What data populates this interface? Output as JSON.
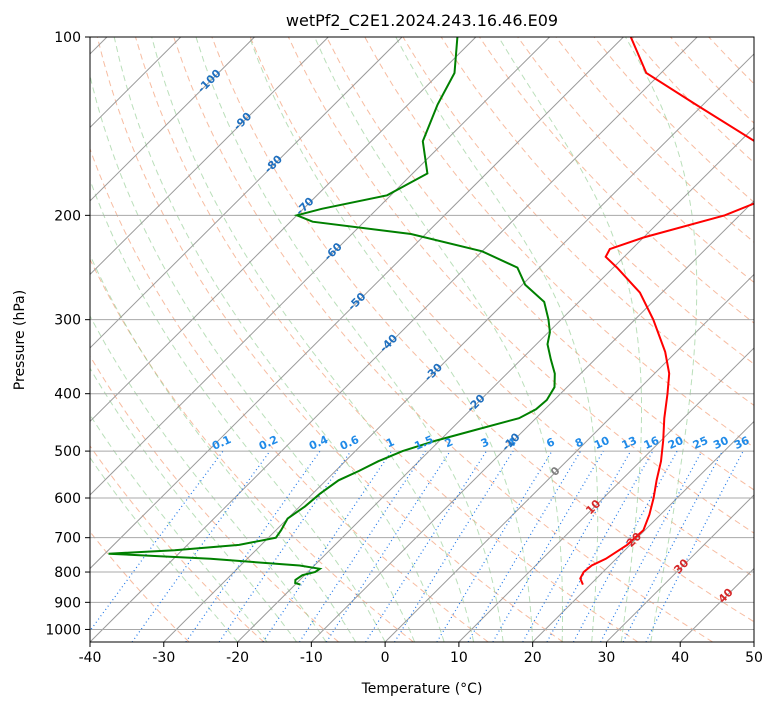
{
  "chart_data": {
    "type": "skew-t",
    "title": "wetPf2_C2E1.2024.243.16.46.E09",
    "xlabel": "Temperature (°C)",
    "ylabel": "Pressure (hPa)",
    "xlim": [
      -40,
      50
    ],
    "ylim": [
      1050,
      100
    ],
    "x_ticks": [
      "-40",
      "-30",
      "-20",
      "-10",
      "0",
      "10",
      "20",
      "30",
      "40",
      "50"
    ],
    "y_ticks": [
      "100",
      "200",
      "300",
      "400",
      "500",
      "600",
      "700",
      "800",
      "900",
      "1000"
    ],
    "temperature_profile": {
      "name": "Temperature",
      "color": "#ff0000",
      "points": [
        [
          840,
          19.0
        ],
        [
          820,
          17.8
        ],
        [
          800,
          17.4
        ],
        [
          780,
          17.6
        ],
        [
          760,
          18.6
        ],
        [
          720,
          19.6
        ],
        [
          680,
          19.8
        ],
        [
          640,
          18.5
        ],
        [
          600,
          16.8
        ],
        [
          560,
          14.8
        ],
        [
          520,
          12.8
        ],
        [
          480,
          10.3
        ],
        [
          440,
          7.4
        ],
        [
          400,
          4.5
        ],
        [
          370,
          2.0
        ],
        [
          340,
          -1.5
        ],
        [
          300,
          -7.5
        ],
        [
          270,
          -13
        ],
        [
          245,
          -19.5
        ],
        [
          235,
          -22.5
        ],
        [
          228,
          -23
        ],
        [
          218,
          -20
        ],
        [
          200,
          -12
        ],
        [
          185,
          -8
        ],
        [
          170,
          -10.5
        ],
        [
          150,
          -18
        ],
        [
          130,
          -31
        ],
        [
          115,
          -42
        ],
        [
          100,
          -49
        ]
      ]
    },
    "dewpoint_profile": {
      "name": "Dewpoint",
      "color": "#008000",
      "points": [
        [
          840,
          -19.3
        ],
        [
          835,
          -20.2
        ],
        [
          825,
          -20.6
        ],
        [
          810,
          -20.3
        ],
        [
          800,
          -19
        ],
        [
          790,
          -18.8
        ],
        [
          780,
          -22
        ],
        [
          760,
          -35
        ],
        [
          745,
          -49.5
        ],
        [
          735,
          -41
        ],
        [
          720,
          -33
        ],
        [
          700,
          -29
        ],
        [
          680,
          -29.3
        ],
        [
          650,
          -30
        ],
        [
          620,
          -29.3
        ],
        [
          590,
          -29
        ],
        [
          560,
          -28.3
        ],
        [
          540,
          -26.8
        ],
        [
          520,
          -25.5
        ],
        [
          500,
          -23.6
        ],
        [
          480,
          -20.5
        ],
        [
          460,
          -16.5
        ],
        [
          440,
          -12.3
        ],
        [
          425,
          -11.2
        ],
        [
          410,
          -11
        ],
        [
          390,
          -11.7
        ],
        [
          370,
          -13.5
        ],
        [
          350,
          -16
        ],
        [
          330,
          -18.5
        ],
        [
          315,
          -19.8
        ],
        [
          300,
          -21.7
        ],
        [
          280,
          -24.7
        ],
        [
          262,
          -29.6
        ],
        [
          245,
          -33
        ],
        [
          230,
          -40
        ],
        [
          215,
          -52
        ],
        [
          205,
          -67
        ],
        [
          200,
          -70
        ],
        [
          195,
          -67.5
        ],
        [
          185,
          -60.5
        ],
        [
          170,
          -58
        ],
        [
          150,
          -63
        ],
        [
          130,
          -66
        ],
        [
          115,
          -68
        ],
        [
          100,
          -72.5
        ]
      ]
    },
    "mixing_ratio_labels": [
      "0.1",
      "0.2",
      "0.4",
      "0.6",
      "1",
      "1.5",
      "2",
      "3",
      "4",
      "6",
      "8",
      "10",
      "13",
      "16",
      "20",
      "25",
      "30",
      "36"
    ],
    "temperature_line_labels": [
      "-100",
      "-90",
      "-80",
      "-70",
      "-60",
      "-50",
      "-40",
      "-30",
      "-20",
      "-10",
      "0",
      "10",
      "20",
      "30",
      "40"
    ]
  }
}
